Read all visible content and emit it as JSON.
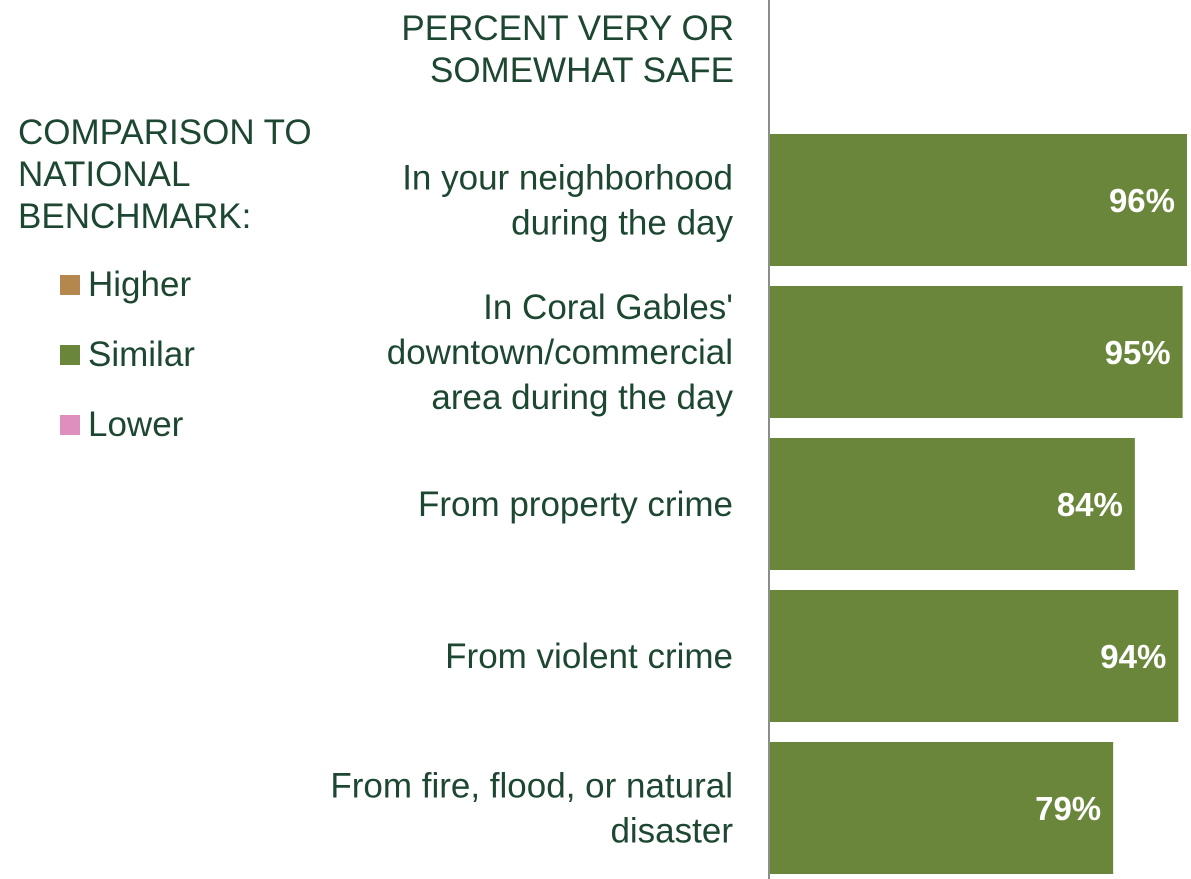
{
  "legend": {
    "title": "COMPARISON TO\nNATIONAL\nBENCHMARK:",
    "items": [
      {
        "label": "Higher",
        "color": "#b4884d"
      },
      {
        "label": "Similar",
        "color": "#6a863a"
      },
      {
        "label": "Lower",
        "color": "#de8fbd"
      }
    ]
  },
  "chart_data": {
    "type": "bar",
    "orientation": "horizontal",
    "title": "PERCENT VERY OR\nSOMEWHAT SAFE",
    "categories": [
      "In your neighborhood\nduring the day",
      "In Coral Gables'\ndowntown/commercial\narea during the day",
      "From property crime",
      "From violent crime",
      "From fire, flood, or natural\ndisaster"
    ],
    "values": [
      96,
      95,
      84,
      94,
      79
    ],
    "value_labels": [
      "96%",
      "95%",
      "84%",
      "94%",
      "79%"
    ],
    "comparison": [
      "Similar",
      "Similar",
      "Similar",
      "Similar",
      "Similar"
    ],
    "bar_color": "#6a863a",
    "axis_color": "#8c8c8c",
    "xlim": [
      0,
      100
    ],
    "grid": false,
    "legend_position": "left"
  }
}
